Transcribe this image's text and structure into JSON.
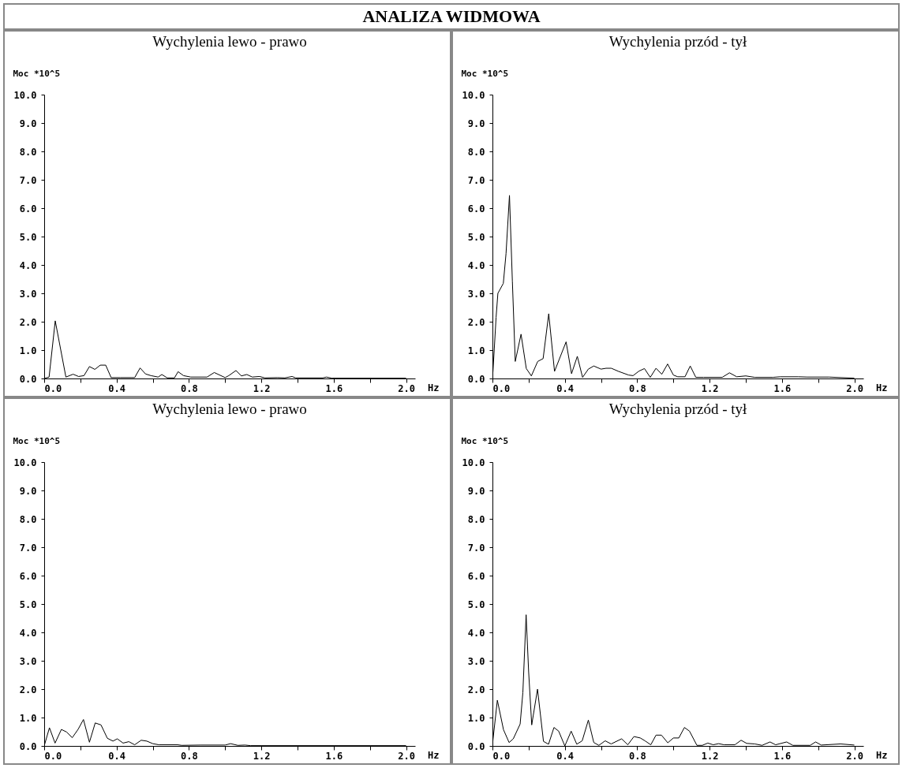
{
  "chart_data": [
    {
      "type": "line",
      "title": "Wychylenia lewo - prawo",
      "annotations": [
        "ANALIZA WIDMOWA"
      ],
      "xlabel": "Hz",
      "ylabel": "Moc *10^5",
      "xlim": [
        0,
        2.05
      ],
      "ylim": [
        0,
        10
      ],
      "xticks": [
        {
          "value": 0,
          "label": "0.0"
        },
        {
          "value": 0.2,
          "label": null
        },
        {
          "value": 0.4,
          "label": "0.4"
        },
        {
          "value": 0.6,
          "label": null
        },
        {
          "value": 0.8,
          "label": "0.8"
        },
        {
          "value": 1.0,
          "label": null
        },
        {
          "value": 1.2,
          "label": "1.2"
        },
        {
          "value": 1.4,
          "label": null
        },
        {
          "value": 1.6,
          "label": "1.6"
        },
        {
          "value": 1.8,
          "label": null
        },
        {
          "value": 2.0,
          "label": "2.0"
        }
      ],
      "yticks": [
        {
          "value": 0,
          "label": "0.0"
        },
        {
          "value": 1,
          "label": "1.0"
        },
        {
          "value": 2,
          "label": "2.0"
        },
        {
          "value": 3,
          "label": "3.0"
        },
        {
          "value": 4,
          "label": "4.0"
        },
        {
          "value": 5,
          "label": "5.0"
        },
        {
          "value": 6,
          "label": "6.0"
        },
        {
          "value": 7,
          "label": "7.0"
        },
        {
          "value": 8,
          "label": "8.0"
        },
        {
          "value": 9,
          "label": "9.0"
        },
        {
          "value": 10,
          "label": "10.0"
        }
      ],
      "series": [
        {
          "color": "#000000",
          "x": [
            0,
            0.027,
            0.061,
            0.12,
            0.16,
            0.19,
            0.22,
            0.25,
            0.28,
            0.31,
            0.34,
            0.37,
            0.42,
            0.48,
            0.5,
            0.53,
            0.56,
            0.59,
            0.63,
            0.65,
            0.68,
            0.72,
            0.74,
            0.77,
            0.81,
            0.9,
            0.94,
            1.0,
            1.02,
            1.06,
            1.09,
            1.12,
            1.15,
            1.19,
            1.22,
            1.29,
            1.33,
            1.37,
            1.39,
            1.54,
            1.56,
            1.59,
            2.0
          ],
          "values": [
            0,
            0.05,
            2.03,
            0.05,
            0.15,
            0.07,
            0.1,
            0.42,
            0.32,
            0.47,
            0.47,
            0.03,
            0.03,
            0.03,
            0.03,
            0.37,
            0.16,
            0.1,
            0.05,
            0.14,
            0.02,
            0.02,
            0.24,
            0.1,
            0.05,
            0.05,
            0.21,
            0.03,
            0.1,
            0.28,
            0.09,
            0.14,
            0.05,
            0.07,
            0.02,
            0.03,
            0.02,
            0.07,
            0.02,
            0.02,
            0.05,
            0.01,
            0.01
          ]
        }
      ]
    },
    {
      "type": "line",
      "title": "Wychylenia przód - tył",
      "xlabel": "Hz",
      "ylabel": "Moc *10^5",
      "xlim": [
        0,
        2.05
      ],
      "ylim": [
        0,
        10
      ],
      "xticks": [
        {
          "value": 0,
          "label": "0.0"
        },
        {
          "value": 0.2,
          "label": null
        },
        {
          "value": 0.4,
          "label": "0.4"
        },
        {
          "value": 0.6,
          "label": null
        },
        {
          "value": 0.8,
          "label": "0.8"
        },
        {
          "value": 1.0,
          "label": null
        },
        {
          "value": 1.2,
          "label": "1.2"
        },
        {
          "value": 1.4,
          "label": null
        },
        {
          "value": 1.6,
          "label": "1.6"
        },
        {
          "value": 1.8,
          "label": null
        },
        {
          "value": 2.0,
          "label": "2.0"
        }
      ],
      "yticks": [
        {
          "value": 0,
          "label": "0.0"
        },
        {
          "value": 1,
          "label": "1.0"
        },
        {
          "value": 2,
          "label": "2.0"
        },
        {
          "value": 3,
          "label": "3.0"
        },
        {
          "value": 4,
          "label": "4.0"
        },
        {
          "value": 5,
          "label": "5.0"
        },
        {
          "value": 6,
          "label": "6.0"
        },
        {
          "value": 7,
          "label": "7.0"
        },
        {
          "value": 8,
          "label": "8.0"
        },
        {
          "value": 9,
          "label": "9.0"
        },
        {
          "value": 10,
          "label": "10.0"
        }
      ],
      "series": [
        {
          "color": "#000000",
          "x": [
            0,
            0.003,
            0.01,
            0.02,
            0.03,
            0.06,
            0.075,
            0.094,
            0.11,
            0.126,
            0.158,
            0.187,
            0.215,
            0.25,
            0.28,
            0.311,
            0.343,
            0.407,
            0.437,
            0.469,
            0.498,
            0.53,
            0.56,
            0.6,
            0.628,
            0.657,
            0.697,
            0.753,
            0.777,
            0.81,
            0.84,
            0.872,
            0.904,
            0.936,
            0.968,
            1.0,
            1.024,
            1.064,
            1.093,
            1.124,
            1.167,
            1.27,
            1.31,
            1.35,
            1.4,
            1.45,
            1.55,
            1.59,
            1.69,
            1.74,
            1.86,
            2.0
          ],
          "values": [
            0,
            0.28,
            1.03,
            2.15,
            3.0,
            3.35,
            4.4,
            6.45,
            3.43,
            0.6,
            1.56,
            0.35,
            0.09,
            0.6,
            0.7,
            2.28,
            0.25,
            1.29,
            0.17,
            0.78,
            0.04,
            0.33,
            0.44,
            0.33,
            0.36,
            0.36,
            0.25,
            0.12,
            0.1,
            0.26,
            0.35,
            0.04,
            0.36,
            0.15,
            0.51,
            0.12,
            0.06,
            0.06,
            0.44,
            0.04,
            0.04,
            0.04,
            0.2,
            0.06,
            0.09,
            0.04,
            0.04,
            0.06,
            0.06,
            0.05,
            0.05,
            0.01
          ]
        }
      ]
    },
    {
      "type": "line",
      "title": "Wychylenia lewo - prawo",
      "xlabel": "Hz",
      "ylabel": "Moc *10^5",
      "xlim": [
        0,
        2.05
      ],
      "ylim": [
        0,
        10
      ],
      "xticks": [
        {
          "value": 0,
          "label": "0.0"
        },
        {
          "value": 0.2,
          "label": null
        },
        {
          "value": 0.4,
          "label": "0.4"
        },
        {
          "value": 0.6,
          "label": null
        },
        {
          "value": 0.8,
          "label": "0.8"
        },
        {
          "value": 1.0,
          "label": null
        },
        {
          "value": 1.2,
          "label": "1.2"
        },
        {
          "value": 1.4,
          "label": null
        },
        {
          "value": 1.6,
          "label": "1.6"
        },
        {
          "value": 1.8,
          "label": null
        },
        {
          "value": 2.0,
          "label": "2.0"
        }
      ],
      "yticks": [
        {
          "value": 0,
          "label": "0.0"
        },
        {
          "value": 1,
          "label": "1.0"
        },
        {
          "value": 2,
          "label": "2.0"
        },
        {
          "value": 3,
          "label": "3.0"
        },
        {
          "value": 4,
          "label": "4.0"
        },
        {
          "value": 5,
          "label": "5.0"
        },
        {
          "value": 6,
          "label": "6.0"
        },
        {
          "value": 7,
          "label": "7.0"
        },
        {
          "value": 8,
          "label": "8.0"
        },
        {
          "value": 9,
          "label": "9.0"
        },
        {
          "value": 10,
          "label": "10.0"
        }
      ],
      "series": [
        {
          "color": "#000000",
          "x": [
            0,
            0.029,
            0.06,
            0.095,
            0.124,
            0.155,
            0.187,
            0.217,
            0.25,
            0.282,
            0.314,
            0.349,
            0.38,
            0.404,
            0.436,
            0.468,
            0.5,
            0.536,
            0.567,
            0.6,
            0.634,
            0.737,
            0.76,
            0.864,
            1.0,
            1.03,
            1.07,
            1.11,
            1.14,
            2.0
          ],
          "values": [
            0,
            0.64,
            0.1,
            0.58,
            0.49,
            0.29,
            0.58,
            0.93,
            0.13,
            0.81,
            0.74,
            0.27,
            0.17,
            0.25,
            0.1,
            0.15,
            0.04,
            0.2,
            0.17,
            0.08,
            0.04,
            0.04,
            0.02,
            0.03,
            0.03,
            0.08,
            0.02,
            0.03,
            0.01,
            0.01
          ]
        }
      ]
    },
    {
      "type": "line",
      "title": "Wychylenia przód - tył",
      "xlabel": "Hz",
      "ylabel": "Moc *10^5",
      "xlim": [
        0,
        2.05
      ],
      "ylim": [
        0,
        10
      ],
      "xticks": [
        {
          "value": 0,
          "label": "0.0"
        },
        {
          "value": 0.2,
          "label": null
        },
        {
          "value": 0.4,
          "label": "0.4"
        },
        {
          "value": 0.6,
          "label": null
        },
        {
          "value": 0.8,
          "label": "0.8"
        },
        {
          "value": 1.0,
          "label": null
        },
        {
          "value": 1.2,
          "label": "1.2"
        },
        {
          "value": 1.4,
          "label": null
        },
        {
          "value": 1.6,
          "label": "1.6"
        },
        {
          "value": 1.8,
          "label": null
        },
        {
          "value": 2.0,
          "label": "2.0"
        }
      ],
      "yticks": [
        {
          "value": 0,
          "label": "0.0"
        },
        {
          "value": 1,
          "label": "1.0"
        },
        {
          "value": 2,
          "label": "2.0"
        },
        {
          "value": 3,
          "label": "3.0"
        },
        {
          "value": 4,
          "label": "4.0"
        },
        {
          "value": 5,
          "label": "5.0"
        },
        {
          "value": 6,
          "label": "6.0"
        },
        {
          "value": 7,
          "label": "7.0"
        },
        {
          "value": 8,
          "label": "8.0"
        },
        {
          "value": 9,
          "label": "9.0"
        },
        {
          "value": 10,
          "label": "10.0"
        }
      ],
      "series": [
        {
          "color": "#000000",
          "x": [
            0,
            0.003,
            0.027,
            0.061,
            0.092,
            0.115,
            0.153,
            0.168,
            0.186,
            0.2,
            0.217,
            0.249,
            0.282,
            0.31,
            0.34,
            0.366,
            0.4,
            0.435,
            0.466,
            0.496,
            0.53,
            0.56,
            0.588,
            0.623,
            0.656,
            0.714,
            0.748,
            0.782,
            0.817,
            0.843,
            0.875,
            0.904,
            0.934,
            0.969,
            1.0,
            1.03,
            1.061,
            1.089,
            1.13,
            1.16,
            1.19,
            1.22,
            1.25,
            1.28,
            1.34,
            1.374,
            1.405,
            1.45,
            1.49,
            1.534,
            1.565,
            1.626,
            1.66,
            1.756,
            1.786,
            1.817,
            1.924,
            2.0
          ],
          "values": [
            0,
            0.23,
            1.61,
            0.57,
            0.12,
            0.25,
            0.77,
            1.88,
            4.62,
            2.61,
            0.74,
            2.0,
            0.16,
            0.06,
            0.65,
            0.52,
            0,
            0.52,
            0.06,
            0.18,
            0.91,
            0.12,
            0.02,
            0.18,
            0.07,
            0.25,
            0.04,
            0.33,
            0.28,
            0.18,
            0.04,
            0.38,
            0.38,
            0.11,
            0.28,
            0.28,
            0.65,
            0.52,
            0.02,
            0.02,
            0.1,
            0.04,
            0.08,
            0.04,
            0.04,
            0.2,
            0.09,
            0.07,
            0.02,
            0.14,
            0.04,
            0.14,
            0.02,
            0.02,
            0.14,
            0.03,
            0.07,
            0.03
          ]
        }
      ]
    }
  ]
}
